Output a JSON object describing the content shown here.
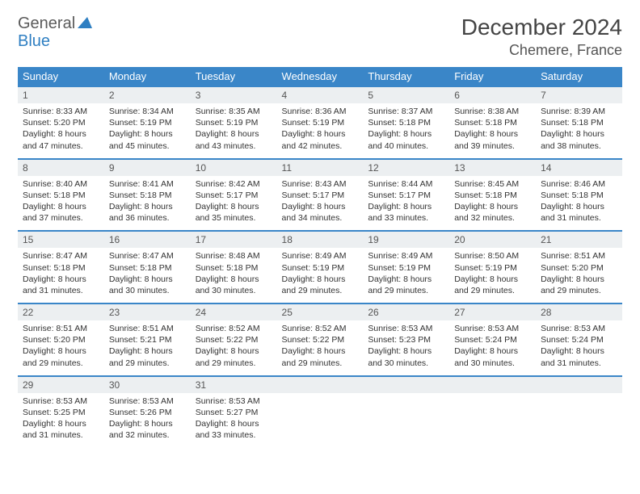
{
  "logo": {
    "text_gray": "General",
    "text_blue": "Blue"
  },
  "header": {
    "month_year": "December 2024",
    "location": "Chemere, France"
  },
  "colors": {
    "header_bg": "#3a86c8",
    "header_text": "#ffffff",
    "daynum_bg": "#eceff1",
    "row_divider": "#3a86c8",
    "body_text": "#333333",
    "logo_gray": "#5a5a5a",
    "logo_blue": "#2f7fc2",
    "page_bg": "#ffffff"
  },
  "typography": {
    "month_fontsize": 28,
    "location_fontsize": 18,
    "weekday_fontsize": 13,
    "daynum_fontsize": 12,
    "body_fontsize": 10.5
  },
  "weekdays": [
    "Sunday",
    "Monday",
    "Tuesday",
    "Wednesday",
    "Thursday",
    "Friday",
    "Saturday"
  ],
  "weeks": [
    [
      {
        "n": "1",
        "sunrise": "8:33 AM",
        "sunset": "5:20 PM",
        "dl": "8 hours and 47 minutes."
      },
      {
        "n": "2",
        "sunrise": "8:34 AM",
        "sunset": "5:19 PM",
        "dl": "8 hours and 45 minutes."
      },
      {
        "n": "3",
        "sunrise": "8:35 AM",
        "sunset": "5:19 PM",
        "dl": "8 hours and 43 minutes."
      },
      {
        "n": "4",
        "sunrise": "8:36 AM",
        "sunset": "5:19 PM",
        "dl": "8 hours and 42 minutes."
      },
      {
        "n": "5",
        "sunrise": "8:37 AM",
        "sunset": "5:18 PM",
        "dl": "8 hours and 40 minutes."
      },
      {
        "n": "6",
        "sunrise": "8:38 AM",
        "sunset": "5:18 PM",
        "dl": "8 hours and 39 minutes."
      },
      {
        "n": "7",
        "sunrise": "8:39 AM",
        "sunset": "5:18 PM",
        "dl": "8 hours and 38 minutes."
      }
    ],
    [
      {
        "n": "8",
        "sunrise": "8:40 AM",
        "sunset": "5:18 PM",
        "dl": "8 hours and 37 minutes."
      },
      {
        "n": "9",
        "sunrise": "8:41 AM",
        "sunset": "5:18 PM",
        "dl": "8 hours and 36 minutes."
      },
      {
        "n": "10",
        "sunrise": "8:42 AM",
        "sunset": "5:17 PM",
        "dl": "8 hours and 35 minutes."
      },
      {
        "n": "11",
        "sunrise": "8:43 AM",
        "sunset": "5:17 PM",
        "dl": "8 hours and 34 minutes."
      },
      {
        "n": "12",
        "sunrise": "8:44 AM",
        "sunset": "5:17 PM",
        "dl": "8 hours and 33 minutes."
      },
      {
        "n": "13",
        "sunrise": "8:45 AM",
        "sunset": "5:18 PM",
        "dl": "8 hours and 32 minutes."
      },
      {
        "n": "14",
        "sunrise": "8:46 AM",
        "sunset": "5:18 PM",
        "dl": "8 hours and 31 minutes."
      }
    ],
    [
      {
        "n": "15",
        "sunrise": "8:47 AM",
        "sunset": "5:18 PM",
        "dl": "8 hours and 31 minutes."
      },
      {
        "n": "16",
        "sunrise": "8:47 AM",
        "sunset": "5:18 PM",
        "dl": "8 hours and 30 minutes."
      },
      {
        "n": "17",
        "sunrise": "8:48 AM",
        "sunset": "5:18 PM",
        "dl": "8 hours and 30 minutes."
      },
      {
        "n": "18",
        "sunrise": "8:49 AM",
        "sunset": "5:19 PM",
        "dl": "8 hours and 29 minutes."
      },
      {
        "n": "19",
        "sunrise": "8:49 AM",
        "sunset": "5:19 PM",
        "dl": "8 hours and 29 minutes."
      },
      {
        "n": "20",
        "sunrise": "8:50 AM",
        "sunset": "5:19 PM",
        "dl": "8 hours and 29 minutes."
      },
      {
        "n": "21",
        "sunrise": "8:51 AM",
        "sunset": "5:20 PM",
        "dl": "8 hours and 29 minutes."
      }
    ],
    [
      {
        "n": "22",
        "sunrise": "8:51 AM",
        "sunset": "5:20 PM",
        "dl": "8 hours and 29 minutes."
      },
      {
        "n": "23",
        "sunrise": "8:51 AM",
        "sunset": "5:21 PM",
        "dl": "8 hours and 29 minutes."
      },
      {
        "n": "24",
        "sunrise": "8:52 AM",
        "sunset": "5:22 PM",
        "dl": "8 hours and 29 minutes."
      },
      {
        "n": "25",
        "sunrise": "8:52 AM",
        "sunset": "5:22 PM",
        "dl": "8 hours and 29 minutes."
      },
      {
        "n": "26",
        "sunrise": "8:53 AM",
        "sunset": "5:23 PM",
        "dl": "8 hours and 30 minutes."
      },
      {
        "n": "27",
        "sunrise": "8:53 AM",
        "sunset": "5:24 PM",
        "dl": "8 hours and 30 minutes."
      },
      {
        "n": "28",
        "sunrise": "8:53 AM",
        "sunset": "5:24 PM",
        "dl": "8 hours and 31 minutes."
      }
    ],
    [
      {
        "n": "29",
        "sunrise": "8:53 AM",
        "sunset": "5:25 PM",
        "dl": "8 hours and 31 minutes."
      },
      {
        "n": "30",
        "sunrise": "8:53 AM",
        "sunset": "5:26 PM",
        "dl": "8 hours and 32 minutes."
      },
      {
        "n": "31",
        "sunrise": "8:53 AM",
        "sunset": "5:27 PM",
        "dl": "8 hours and 33 minutes."
      },
      null,
      null,
      null,
      null
    ]
  ],
  "labels": {
    "sunrise": "Sunrise:",
    "sunset": "Sunset:",
    "daylight": "Daylight:"
  }
}
